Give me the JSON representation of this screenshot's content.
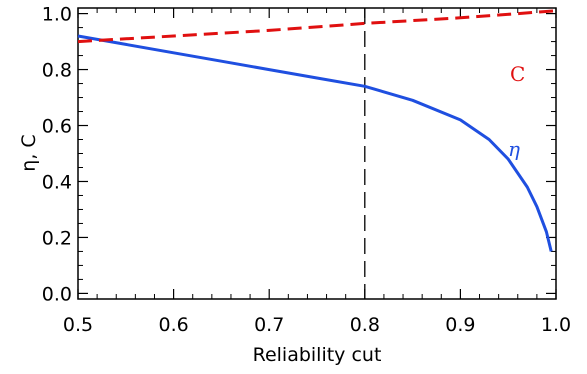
{
  "chart_data": {
    "type": "line",
    "xlabel": "Reliability cut",
    "ylabel": "η, C",
    "xlim": [
      0.5,
      1.0
    ],
    "ylim": [
      -0.02,
      1.02
    ],
    "xticks": [
      0.5,
      0.6,
      0.7,
      0.8,
      0.9,
      1.0
    ],
    "xtick_labels": [
      "0.5",
      "0.6",
      "0.7",
      "0.8",
      "0.9",
      "1.0"
    ],
    "yticks": [
      0.0,
      0.2,
      0.4,
      0.6,
      0.8,
      1.0
    ],
    "ytick_labels": [
      "0.0",
      "0.2",
      "0.4",
      "0.6",
      "0.8",
      "1.0"
    ],
    "grid": false,
    "legend": "none",
    "series": [
      {
        "name": "η",
        "color": "#1f4fe0",
        "style": "solid",
        "x": [
          0.5,
          0.55,
          0.6,
          0.65,
          0.7,
          0.75,
          0.8,
          0.85,
          0.9,
          0.93,
          0.95,
          0.97,
          0.98,
          0.99,
          0.995
        ],
        "y": [
          0.92,
          0.89,
          0.86,
          0.83,
          0.8,
          0.77,
          0.74,
          0.69,
          0.62,
          0.55,
          0.48,
          0.38,
          0.31,
          0.22,
          0.15
        ]
      },
      {
        "name": "C",
        "color": "#e01010",
        "style": "dashed",
        "x": [
          0.5,
          0.6,
          0.7,
          0.8,
          0.9,
          1.0
        ],
        "y": [
          0.9,
          0.92,
          0.94,
          0.965,
          0.985,
          1.01
        ]
      }
    ],
    "annotations": [
      {
        "type": "vline",
        "x": 0.8,
        "style": "dashed",
        "color": "#000000"
      }
    ]
  }
}
